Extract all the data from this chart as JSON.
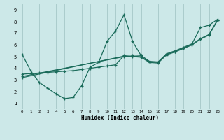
{
  "xlabel": "Humidex (Indice chaleur)",
  "bg_color": "#cce8e8",
  "grid_color": "#aacccc",
  "line_color": "#1a6b5a",
  "xlim": [
    -0.5,
    23.5
  ],
  "ylim": [
    0.5,
    9.5
  ],
  "xticks": [
    0,
    1,
    2,
    3,
    4,
    5,
    6,
    7,
    8,
    9,
    10,
    11,
    12,
    13,
    14,
    15,
    16,
    17,
    18,
    19,
    20,
    21,
    22,
    23
  ],
  "yticks": [
    1,
    2,
    3,
    4,
    5,
    6,
    7,
    8,
    9
  ],
  "line1_x": [
    0,
    1,
    2,
    3,
    4,
    5,
    6,
    7,
    8,
    9,
    10,
    11,
    12,
    13,
    14
  ],
  "line1_y": [
    5.2,
    3.8,
    2.8,
    2.3,
    1.8,
    1.4,
    1.5,
    2.5,
    4.1,
    4.5,
    6.3,
    7.2,
    8.6,
    6.3,
    5.1
  ],
  "line2_x": [
    0,
    1,
    2,
    3,
    4,
    5,
    6,
    7,
    8,
    9,
    10,
    11,
    12,
    13,
    14,
    15,
    16,
    17,
    18,
    19,
    20,
    21,
    22,
    23
  ],
  "line2_y": [
    3.5,
    3.55,
    3.6,
    3.65,
    3.7,
    3.75,
    3.8,
    3.9,
    4.0,
    4.1,
    4.2,
    4.3,
    5.1,
    5.15,
    5.1,
    4.6,
    4.55,
    5.25,
    5.5,
    5.8,
    6.1,
    7.5,
    7.7,
    8.2
  ],
  "line3_x": [
    0,
    12,
    13,
    14,
    15,
    16,
    17,
    18,
    19,
    20,
    21,
    22,
    23
  ],
  "line3_y": [
    3.3,
    5.0,
    5.05,
    5.0,
    4.55,
    4.5,
    5.2,
    5.45,
    5.75,
    6.05,
    6.55,
    6.9,
    8.15
  ],
  "line4_x": [
    0,
    12,
    13,
    14,
    15,
    16,
    17,
    18,
    19,
    20,
    21,
    22,
    23
  ],
  "line4_y": [
    3.2,
    5.05,
    5.0,
    4.95,
    4.5,
    4.45,
    5.15,
    5.4,
    5.7,
    6.0,
    6.5,
    6.85,
    8.1
  ]
}
